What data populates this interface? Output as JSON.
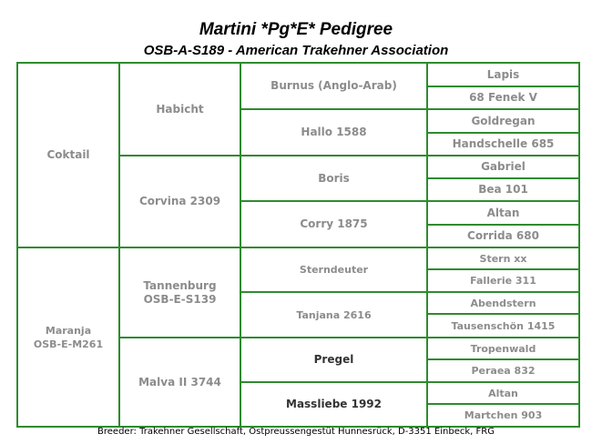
{
  "title": "Martini *Pg*E* Pedigree",
  "subtitle": "OSB-A-S189 - American Trakehner Association",
  "pedigree": {
    "gen1": [
      {
        "name": "Coktail"
      },
      {
        "line1": "Maranja",
        "line2": "OSB-E-M261"
      }
    ],
    "gen2": [
      {
        "name": "Habicht"
      },
      {
        "name": "Corvina 2309"
      },
      {
        "line1": "Tannenburg",
        "line2": "OSB-E-S139"
      },
      {
        "name": "Malva II 3744"
      }
    ],
    "gen3": [
      {
        "name": "Burnus (Anglo-Arab)"
      },
      {
        "name": "Hallo 1588"
      },
      {
        "name": "Boris"
      },
      {
        "name": "Corry 1875"
      },
      {
        "name": "Sterndeuter"
      },
      {
        "name": "Tanjana 2616"
      },
      {
        "name": "Pregel"
      },
      {
        "name": "Massliebe 1992"
      }
    ],
    "gen4": [
      {
        "name": "Lapis"
      },
      {
        "name": "68 Fenek V"
      },
      {
        "name": "Goldregan"
      },
      {
        "name": "Handschelle 685"
      },
      {
        "name": "Gabriel"
      },
      {
        "name": "Bea 101"
      },
      {
        "name": "Altan"
      },
      {
        "name": "Corrida 680"
      },
      {
        "name": "Stern xx"
      },
      {
        "name": "Fallerie 311"
      },
      {
        "name": "Abendstern"
      },
      {
        "name": "Tausenschön 1415"
      },
      {
        "name": "Tropenwald"
      },
      {
        "name": "Peraea 832"
      },
      {
        "name": "Altan"
      },
      {
        "name": "Martchen 903"
      }
    ]
  },
  "footer": "Breeder: Trakehner Gesellschaft, Ostpreussengestüt Hunnesrück, D-3351 Einbeck, FRG",
  "colors": {
    "border": "#2e8b2e",
    "text_grey": "#8c8c8c"
  }
}
